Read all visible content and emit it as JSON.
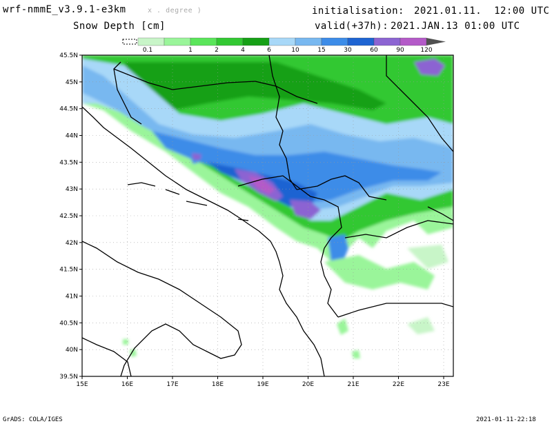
{
  "header": {
    "model": "wrf-nmmE_v3.9.1-e3km",
    "model_note": "x . degree )",
    "variable": "Snow Depth [cm]",
    "init_label": "initialisation:",
    "init_value": "2021.01.11.  12:00 UTC",
    "valid_label": "valid(+37h):",
    "valid_value": "2021.JAN.13 01:00 UTC"
  },
  "legend": {
    "ticks": [
      "0.1",
      "1",
      "2",
      "4",
      "6",
      "10",
      "15",
      "30",
      "60",
      "90",
      "120"
    ],
    "colors": [
      "#c8f5c8",
      "#9af59a",
      "#5ae55a",
      "#32c832",
      "#16a016",
      "#a8d8f8",
      "#78b8f0",
      "#3c8ce8",
      "#1e64d2",
      "#8c64d2",
      "#b45ac8",
      "#505050"
    ]
  },
  "map": {
    "lat_labels": [
      "45.5N",
      "45N",
      "44.5N",
      "44N",
      "43.5N",
      "43N",
      "42.5N",
      "42N",
      "41.5N",
      "41N",
      "40.5N",
      "40N",
      "39.5N"
    ],
    "lon_labels": [
      "15E",
      "16E",
      "17E",
      "18E",
      "19E",
      "20E",
      "21E",
      "22E",
      "23E"
    ]
  },
  "footer": {
    "left": "GrADS: COLA/IGES",
    "right": "2021-01-11-22:18"
  }
}
